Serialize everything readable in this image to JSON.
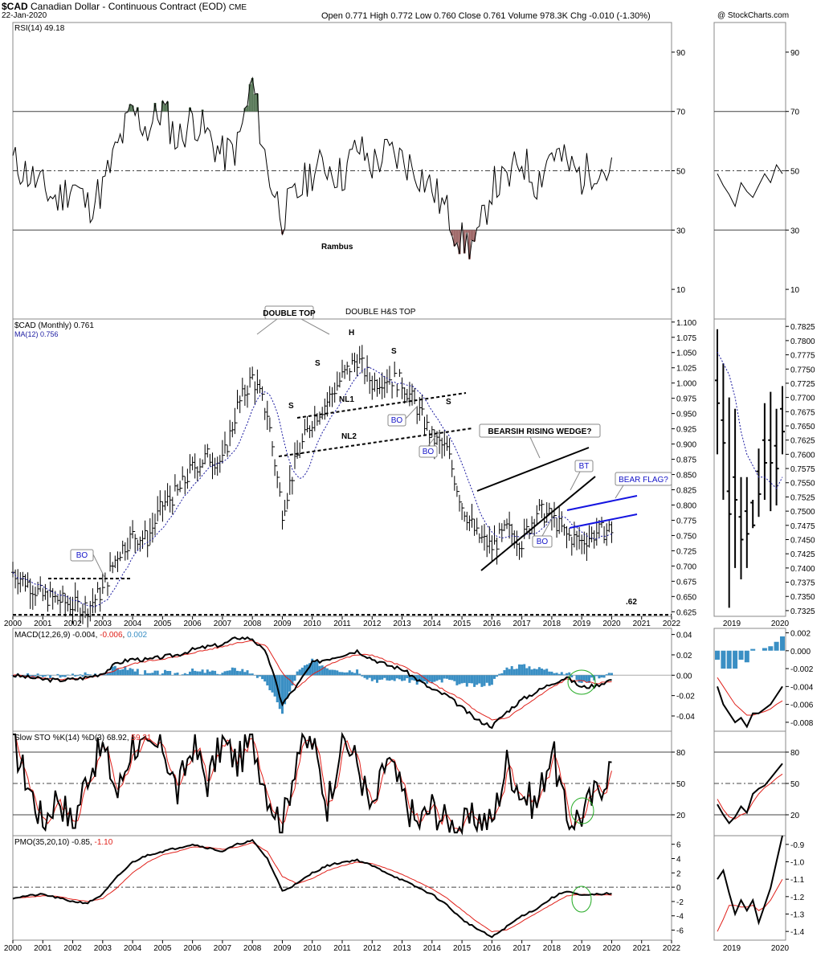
{
  "header": {
    "symbol": "$CAD",
    "name": "Canadian Dollar - Continuous Contract (EOD)",
    "exchange": "CME",
    "date": "22-Jan-2020",
    "quote": "Open 0.771  High 0.772  Low 0.760  Close 0.761  Volume 978.3K  Chg -0.010 (-1.30%)",
    "copyright": "@ StockCharts.com"
  },
  "panels": {
    "rsi_label": "RSI(14) 49.18",
    "price_label": "$CAD (Monthly) 0.761",
    "ma_label": "MA(12) 0.756",
    "macd_label_prefix": "MACD(12,26,9) -0.004, ",
    "macd_signal_value": "-0.006",
    "macd_sep": ", ",
    "macd_hist_value": "0.002",
    "sto_label_prefix": "Slow STO %K(14) %D(3) 68.92, ",
    "sto_d_value": "59.31",
    "pmo_label_prefix": "PMO(35,20,10) -0.85, ",
    "pmo_signal_value": "-1.10"
  },
  "annotations": {
    "rambus": "Rambus",
    "double_top": "DOUBLE TOP",
    "double_hs": "DOUBLE H&S TOP",
    "h": "H",
    "s": "S",
    "nl1": "NL1",
    "nl2": "NL2",
    "bo": "BO",
    "bt": "BT",
    "wedge": "BEARSIH RISING WEDGE?",
    "flag": "BEAR FLAG?",
    "level": ".62"
  },
  "colors": {
    "price": "#000000",
    "ma": "#1a1aa0",
    "signal": "#e0201a",
    "histogram": "#3a8fc4",
    "trend_blue": "#1515e0",
    "annot_blue": "#1414c8",
    "circle": "#22aa22",
    "overbought": "#5a7a5a",
    "oversold": "#a06a6a"
  },
  "chart_data": [
    {
      "type": "line",
      "title": "RSI(14) 49.18",
      "x": [
        2000,
        2000.5,
        2001,
        2001.5,
        2002,
        2002.5,
        2003,
        2003.5,
        2004,
        2004.5,
        2005,
        2005.5,
        2006,
        2006.5,
        2007,
        2007.5,
        2008,
        2008.5,
        2009,
        2009.5,
        2010,
        2010.5,
        2011,
        2011.5,
        2012,
        2012.5,
        2013,
        2013.5,
        2014,
        2014.5,
        2015,
        2015.5,
        2016,
        2016.5,
        2017,
        2017.5,
        2018,
        2018.5,
        2019,
        2019.5,
        2020
      ],
      "values": [
        53,
        49,
        44,
        40,
        46,
        38,
        44,
        58,
        70,
        64,
        71,
        60,
        68,
        62,
        55,
        58,
        80,
        50,
        35,
        42,
        50,
        52,
        48,
        58,
        52,
        56,
        54,
        50,
        44,
        36,
        26,
        25,
        45,
        46,
        54,
        46,
        57,
        52,
        48,
        52,
        49
      ],
      "ylim": [
        0,
        100
      ],
      "ticks": [
        10,
        30,
        50,
        70,
        90
      ],
      "reference_lines": [
        30,
        50,
        70
      ]
    },
    {
      "type": "line",
      "title": "$CAD (Monthly) 0.761",
      "x": [
        2000,
        2000.5,
        2001,
        2001.5,
        2002,
        2002.5,
        2003,
        2003.5,
        2004,
        2004.5,
        2005,
        2005.5,
        2006,
        2006.5,
        2007,
        2007.5,
        2008,
        2008.5,
        2009,
        2009.5,
        2010,
        2010.5,
        2011,
        2011.5,
        2012,
        2012.5,
        2013,
        2013.5,
        2014,
        2014.5,
        2015,
        2015.5,
        2016,
        2016.5,
        2017,
        2017.5,
        2018,
        2018.5,
        2019,
        2019.5,
        2020
      ],
      "values": [
        0.69,
        0.672,
        0.65,
        0.645,
        0.635,
        0.632,
        0.66,
        0.72,
        0.75,
        0.745,
        0.8,
        0.82,
        0.86,
        0.88,
        0.87,
        0.96,
        1.01,
        0.95,
        0.79,
        0.88,
        0.94,
        0.97,
        1.01,
        1.04,
        1.0,
        1.01,
        1.0,
        0.96,
        0.91,
        0.89,
        0.8,
        0.75,
        0.73,
        0.76,
        0.74,
        0.79,
        0.78,
        0.75,
        0.74,
        0.755,
        0.761
      ],
      "series": [
        {
          "name": "$CAD (Monthly) 0.761"
        },
        {
          "name": "MA(12) 0.756"
        }
      ],
      "ylim": [
        0.6175,
        1.105
      ],
      "ticks": [
        0.625,
        0.65,
        0.675,
        0.7,
        0.725,
        0.75,
        0.775,
        0.8,
        0.825,
        0.85,
        0.875,
        0.9,
        0.925,
        0.95,
        0.975,
        1.0,
        1.025,
        1.05,
        1.075,
        1.1
      ],
      "tick_labels": [
        "0.625",
        "0.650",
        "0.675",
        "0.700",
        "0.725",
        "0.750",
        "0.775",
        "0.800",
        "0.825",
        "0.850",
        "0.875",
        "0.900",
        "0.925",
        "0.950",
        "0.975",
        "1.000",
        "1.025",
        "1.050",
        "1.075",
        "1.100"
      ]
    },
    {
      "type": "line",
      "title": "MACD(12,26,9) -0.004, -0.006, 0.002",
      "x": [
        2000,
        2000.5,
        2001,
        2001.5,
        2002,
        2002.5,
        2003,
        2003.5,
        2004,
        2004.5,
        2005,
        2005.5,
        2006,
        2006.5,
        2007,
        2007.5,
        2008,
        2008.5,
        2009,
        2009.5,
        2010,
        2010.5,
        2011,
        2011.5,
        2012,
        2012.5,
        2013,
        2013.5,
        2014,
        2014.5,
        2015,
        2015.5,
        2016,
        2016.5,
        2017,
        2017.5,
        2018,
        2018.5,
        2019,
        2019.5,
        2020
      ],
      "macd": [
        0.0,
        -0.002,
        -0.004,
        -0.005,
        -0.004,
        -0.002,
        0.002,
        0.012,
        0.016,
        0.015,
        0.018,
        0.02,
        0.025,
        0.028,
        0.03,
        0.037,
        0.036,
        0.02,
        -0.028,
        -0.01,
        0.012,
        0.016,
        0.02,
        0.024,
        0.016,
        0.01,
        0.006,
        -0.004,
        -0.014,
        -0.02,
        -0.032,
        -0.044,
        -0.05,
        -0.036,
        -0.024,
        -0.016,
        -0.008,
        -0.002,
        -0.012,
        -0.01,
        -0.004
      ],
      "signal": [
        0.0,
        -0.001,
        -0.003,
        -0.004,
        -0.004,
        -0.003,
        0.0,
        0.006,
        0.011,
        0.014,
        0.016,
        0.018,
        0.022,
        0.025,
        0.028,
        0.032,
        0.034,
        0.028,
        0.002,
        -0.012,
        0.0,
        0.01,
        0.016,
        0.02,
        0.02,
        0.014,
        0.009,
        0.002,
        -0.008,
        -0.016,
        -0.024,
        -0.036,
        -0.044,
        -0.042,
        -0.032,
        -0.022,
        -0.012,
        -0.004,
        -0.006,
        -0.008,
        -0.006
      ],
      "ylim": [
        -0.055,
        0.046
      ],
      "ticks": [
        -0.04,
        -0.02,
        0.0,
        0.02,
        0.04
      ],
      "tick_labels": [
        "-0.04",
        "-0.02",
        "0.00",
        "0.02",
        "0.04"
      ]
    },
    {
      "type": "line",
      "title": "Slow STO %K(14) %D(3) 68.92, 59.31",
      "x": [
        2000,
        2000.5,
        2001,
        2001.5,
        2002,
        2002.5,
        2003,
        2003.5,
        2004,
        2004.5,
        2005,
        2005.5,
        2006,
        2006.5,
        2007,
        2007.5,
        2008,
        2008.5,
        2009,
        2009.5,
        2010,
        2010.5,
        2011,
        2011.5,
        2012,
        2012.5,
        2013,
        2013.5,
        2014,
        2014.5,
        2015,
        2015.5,
        2016,
        2016.5,
        2017,
        2017.5,
        2018,
        2018.5,
        2019,
        2019.5,
        2020
      ],
      "k": [
        90,
        50,
        12,
        40,
        10,
        60,
        85,
        40,
        90,
        78,
        88,
        40,
        88,
        52,
        90,
        70,
        92,
        42,
        8,
        82,
        90,
        30,
        95,
        70,
        20,
        75,
        40,
        10,
        28,
        12,
        8,
        18,
        12,
        70,
        40,
        30,
        85,
        15,
        20,
        42,
        69
      ],
      "d": [
        88,
        60,
        20,
        35,
        15,
        50,
        78,
        50,
        85,
        80,
        85,
        50,
        82,
        60,
        85,
        72,
        90,
        55,
        15,
        70,
        85,
        40,
        90,
        75,
        30,
        68,
        45,
        15,
        25,
        15,
        12,
        15,
        15,
        60,
        45,
        35,
        78,
        25,
        18,
        38,
        59
      ],
      "ylim": [
        0,
        100
      ],
      "ticks": [
        20,
        50,
        80
      ],
      "reference_lines": [
        20,
        50,
        80
      ]
    },
    {
      "type": "line",
      "title": "PMO(35,20,10) -0.85, -1.10",
      "x": [
        2000,
        2000.5,
        2001,
        2001.5,
        2002,
        2002.5,
        2003,
        2003.5,
        2004,
        2004.5,
        2005,
        2005.5,
        2006,
        2006.5,
        2007,
        2007.5,
        2008,
        2008.5,
        2009,
        2009.5,
        2010,
        2010.5,
        2011,
        2011.5,
        2012,
        2012.5,
        2013,
        2013.5,
        2014,
        2014.5,
        2015,
        2015.5,
        2016,
        2016.5,
        2017,
        2017.5,
        2018,
        2018.5,
        2019,
        2019.5,
        2020
      ],
      "pmo": [
        -1.5,
        -1.2,
        -1.0,
        -1.5,
        -2.0,
        -2.2,
        -1.0,
        1.5,
        3.5,
        4.5,
        5.0,
        5.5,
        6.0,
        5.5,
        5.0,
        6.0,
        6.5,
        4.0,
        -0.5,
        0.5,
        2.0,
        3.0,
        3.5,
        3.8,
        3.0,
        2.0,
        1.0,
        0.0,
        -1.0,
        -2.5,
        -4.5,
        -5.8,
        -7.0,
        -5.5,
        -4.0,
        -3.0,
        -1.5,
        -0.5,
        -1.2,
        -1.0,
        -0.85
      ],
      "signal": [
        -1.6,
        -1.4,
        -1.2,
        -1.3,
        -1.7,
        -2.0,
        -1.6,
        0.0,
        2.0,
        3.5,
        4.5,
        5.0,
        5.6,
        5.6,
        5.3,
        5.6,
        6.2,
        5.0,
        1.5,
        0.5,
        1.2,
        2.3,
        3.0,
        3.5,
        3.3,
        2.6,
        1.8,
        0.8,
        -0.2,
        -1.5,
        -3.2,
        -4.8,
        -6.2,
        -6.0,
        -4.8,
        -3.6,
        -2.4,
        -1.2,
        -1.0,
        -1.1,
        -1.1
      ],
      "ylim": [
        -7.4,
        7.2
      ],
      "ticks": [
        -6,
        -4,
        -2,
        0,
        2,
        4,
        6
      ],
      "tick_labels": [
        "-6",
        "-4",
        "-2",
        "0",
        "2",
        "4",
        "6"
      ]
    }
  ],
  "x_axis": {
    "years": [
      "2000",
      "2001",
      "2002",
      "2003",
      "2004",
      "2005",
      "2006",
      "2007",
      "2008",
      "2009",
      "2010",
      "2011",
      "2012",
      "2013",
      "2014",
      "2015",
      "2016",
      "2017",
      "2018",
      "2019",
      "2020",
      "2021",
      "2022"
    ]
  },
  "zoom_x_axis": {
    "years": [
      "2019",
      "2020"
    ]
  },
  "zoom_rsi": {
    "values": [
      49,
      45,
      42,
      38,
      46,
      43,
      41,
      45,
      49,
      46,
      52,
      49
    ],
    "ticks": [
      10,
      30,
      50,
      70,
      90
    ]
  },
  "zoom_price": {
    "ticks": [
      0.7325,
      0.735,
      0.7375,
      0.74,
      0.7425,
      0.745,
      0.7475,
      0.75,
      0.7525,
      0.755,
      0.7575,
      0.76,
      0.7625,
      0.765,
      0.7675,
      0.77,
      0.7725,
      0.775,
      0.7775,
      0.78,
      0.7825
    ],
    "tick_labels": [
      "0.7325",
      "0.7350",
      "0.7375",
      "0.7400",
      "0.7425",
      "0.7450",
      "0.7475",
      "0.7500",
      "0.7525",
      "0.7550",
      "0.7575",
      "0.7600",
      "0.7625",
      "0.7650",
      "0.7675",
      "0.7700",
      "0.7725",
      "0.7750",
      "0.7775",
      "0.7800",
      "0.7825"
    ],
    "ylim": [
      0.7315,
      0.7838
    ],
    "high": [
      0.782,
      0.776,
      0.77,
      0.768,
      0.756,
      0.756,
      0.752,
      0.761,
      0.769,
      0.771,
      0.768,
      0.772
    ],
    "low": [
      0.76,
      0.752,
      0.733,
      0.74,
      0.738,
      0.74,
      0.747,
      0.749,
      0.752,
      0.75,
      0.751,
      0.76
    ],
    "ma": [
      0.778,
      0.776,
      0.774,
      0.77,
      0.764,
      0.76,
      0.758,
      0.756,
      0.756,
      0.755,
      0.754,
      0.756
    ]
  },
  "zoom_macd": {
    "ticks": [
      -0.008,
      -0.006,
      -0.004,
      -0.002,
      0.0,
      0.002
    ],
    "tick_labels": [
      "-0.008",
      "-0.006",
      "-0.004",
      "-0.002",
      "0.000",
      "0.002"
    ],
    "ylim": [
      -0.009,
      0.0025
    ],
    "macd": [
      -0.004,
      -0.006,
      -0.007,
      -0.008,
      -0.0075,
      -0.0085,
      -0.007,
      -0.007,
      -0.0065,
      -0.006,
      -0.005,
      -0.004
    ],
    "signal": [
      -0.003,
      -0.004,
      -0.005,
      -0.006,
      -0.0066,
      -0.0072,
      -0.0072,
      -0.007,
      -0.0068,
      -0.0065,
      -0.006,
      -0.0056
    ],
    "hist": [
      -0.001,
      -0.002,
      -0.002,
      -0.002,
      -0.001,
      -0.0013,
      0.0002,
      0.0,
      0.0003,
      0.0005,
      0.001,
      0.0016
    ]
  },
  "zoom_sto": {
    "ticks": [
      20,
      50,
      80
    ],
    "k": [
      30,
      20,
      12,
      18,
      28,
      22,
      40,
      45,
      48,
      55,
      62,
      69
    ],
    "d": [
      35,
      25,
      18,
      16,
      20,
      22,
      32,
      40,
      46,
      50,
      55,
      59
    ]
  },
  "zoom_pmo": {
    "ticks": [
      -1.4,
      -1.3,
      -1.2,
      -1.1,
      -1.0,
      -0.9
    ],
    "tick_labels": [
      "-1.4",
      "-1.3",
      "-1.2",
      "-1.1",
      "-1.0",
      "-0.9"
    ],
    "ylim": [
      -1.45,
      -0.85
    ],
    "pmo": [
      -1.1,
      -1.05,
      -1.18,
      -1.3,
      -1.22,
      -1.28,
      -1.22,
      -1.35,
      -1.25,
      -1.15,
      -1.0,
      -0.85
    ],
    "signal": [
      -1.4,
      -1.33,
      -1.25,
      -1.25,
      -1.26,
      -1.26,
      -1.25,
      -1.28,
      -1.26,
      -1.22,
      -1.16,
      -1.1
    ]
  }
}
